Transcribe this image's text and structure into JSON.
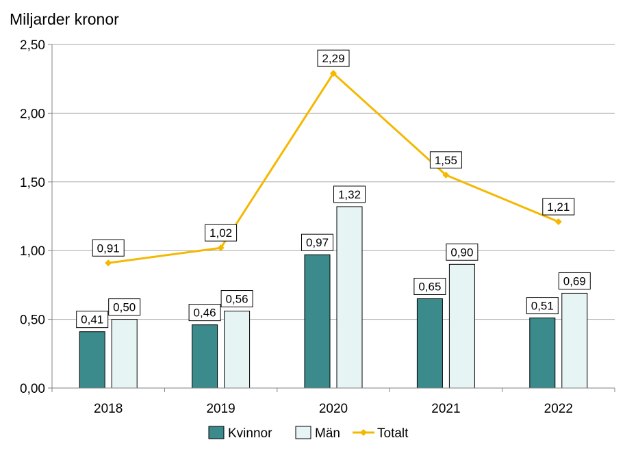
{
  "chart_data": {
    "type": "bar",
    "title": "",
    "ylabel": "Miljarder kronor",
    "xlabel": "",
    "categories": [
      "2018",
      "2019",
      "2020",
      "2021",
      "2022"
    ],
    "ylim": [
      0,
      2.5
    ],
    "yticks": [
      "0,00",
      "0,50",
      "1,00",
      "1,50",
      "2,00",
      "2,50"
    ],
    "grid": true,
    "legend_position": "bottom",
    "series": [
      {
        "name": "Kvinnor",
        "kind": "bar",
        "color": "#3b8a8c",
        "values": [
          0.41,
          0.46,
          0.97,
          0.65,
          0.51
        ],
        "labels": [
          "0,41",
          "0,46",
          "0,97",
          "0,65",
          "0,51"
        ]
      },
      {
        "name": "Män",
        "kind": "bar",
        "color": "#e6f4f4",
        "values": [
          0.5,
          0.56,
          1.32,
          0.9,
          0.69
        ],
        "labels": [
          "0,50",
          "0,56",
          "1,32",
          "0,90",
          "0,69"
        ]
      },
      {
        "name": "Totalt",
        "kind": "line",
        "color": "#f5b800",
        "values": [
          0.91,
          1.02,
          2.29,
          1.55,
          1.21
        ],
        "labels": [
          "0,91",
          "1,02",
          "2,29",
          "1,55",
          "1,21"
        ]
      }
    ]
  }
}
